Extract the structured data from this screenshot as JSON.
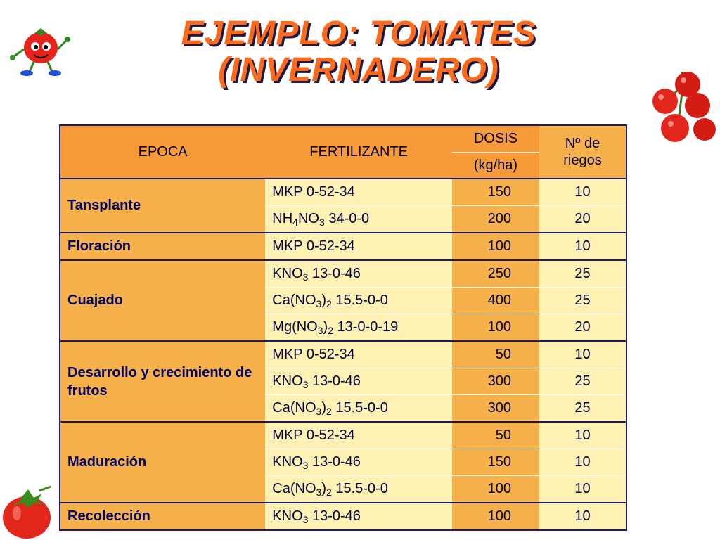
{
  "title": {
    "line1": "EJEMPLO: TOMATES",
    "line2": "(INVERNADERO)"
  },
  "header": {
    "epoca": "EPOCA",
    "fertilizante": "FERTILIZANTE",
    "dosis": "DOSIS",
    "dosis_unit": "(kg/ha)",
    "riegos": "Nº de riegos"
  },
  "groups": [
    {
      "epoca": "Tansplante",
      "rows": [
        {
          "fertilizante": "MKP 0-52-34",
          "dosis": "150",
          "riegos": "10"
        },
        {
          "fertilizante": "NH4NO3 34-0-0",
          "dosis": "200",
          "riegos": "20"
        }
      ]
    },
    {
      "epoca": "Floración",
      "rows": [
        {
          "fertilizante": "MKP 0-52-34",
          "dosis": "100",
          "riegos": "10"
        }
      ]
    },
    {
      "epoca": "Cuajado",
      "rows": [
        {
          "fertilizante": "KNO3 13-0-46",
          "dosis": "250",
          "riegos": "25"
        },
        {
          "fertilizante": "Ca(NO3)2 15.5-0-0",
          "dosis": "400",
          "riegos": "25"
        },
        {
          "fertilizante": "Mg(NO3)2 13-0-0-19",
          "dosis": "100",
          "riegos": "20"
        }
      ]
    },
    {
      "epoca": "Desarrollo y crecimiento de frutos",
      "rows": [
        {
          "fertilizante": "MKP 0-52-34",
          "dosis": "50",
          "riegos": "10"
        },
        {
          "fertilizante": "KNO3 13-0-46",
          "dosis": "300",
          "riegos": "25"
        },
        {
          "fertilizante": "Ca(NO3)2 15.5-0-0",
          "dosis": "300",
          "riegos": "25"
        }
      ]
    },
    {
      "epoca": "Maduración",
      "rows": [
        {
          "fertilizante": "MKP 0-52-34",
          "dosis": "50",
          "riegos": "10"
        },
        {
          "fertilizante": "KNO3 13-0-46",
          "dosis": "150",
          "riegos": "10"
        },
        {
          "fertilizante": "Ca(NO3)2 15.5-0-0",
          "dosis": "100",
          "riegos": "10"
        }
      ]
    },
    {
      "epoca": "Recolección",
      "rows": [
        {
          "fertilizante": "KNO3 13-0-46",
          "dosis": "100",
          "riegos": "10"
        }
      ]
    }
  ],
  "colors": {
    "title": "#ff6a1a",
    "title_shadow": "#1a1a4a",
    "header_bg": "#f79b38",
    "epoca_bg": "#f7b14a",
    "cell_light": "#fff1b3",
    "border": "#1a1a6e"
  },
  "decorations": [
    "tomato-character-icon",
    "tomato-bunch-icon",
    "tomato-icon"
  ]
}
